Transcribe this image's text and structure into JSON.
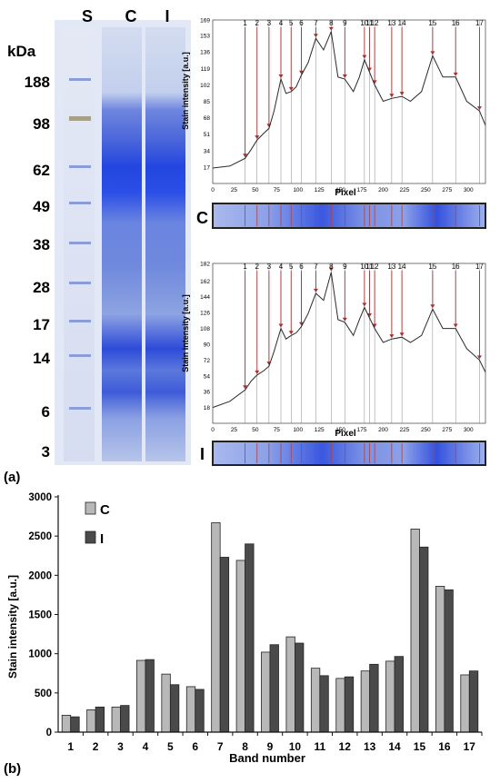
{
  "gel": {
    "unit_label": "kDa",
    "lane_labels": [
      "S",
      "C",
      "I"
    ],
    "markers": [
      "188",
      "98",
      "62",
      "49",
      "38",
      "28",
      "17",
      "14",
      "6",
      "3"
    ]
  },
  "panel_labels": {
    "a": "(a)",
    "b": "(b)"
  },
  "profiles": [
    {
      "strip_label": "C",
      "ylabel": "Stain intensity [a.u.]",
      "xlabel": "Pixel",
      "yticks": [
        "17",
        "34",
        "51",
        "68",
        "85",
        "102",
        "119",
        "136",
        "153",
        "169"
      ],
      "ymax": 169,
      "xticks": [
        "0",
        "25",
        "50",
        "75",
        "100",
        "125",
        "150",
        "175",
        "200",
        "225",
        "250",
        "275",
        "300"
      ],
      "xmax": 320,
      "band_labels": [
        "1",
        "2",
        "3",
        "4",
        "5",
        "6",
        "7",
        "8",
        "9",
        "10",
        "11",
        "12",
        "13",
        "14",
        "15",
        "16",
        "17"
      ],
      "band_x": [
        38,
        52,
        66,
        80,
        92,
        104,
        121,
        139,
        155,
        178,
        184,
        190,
        210,
        222,
        258,
        285,
        313
      ],
      "profile": [
        [
          0,
          16
        ],
        [
          20,
          18
        ],
        [
          38,
          26
        ],
        [
          45,
          35
        ],
        [
          52,
          45
        ],
        [
          60,
          52
        ],
        [
          66,
          57
        ],
        [
          72,
          75
        ],
        [
          80,
          108
        ],
        [
          86,
          93
        ],
        [
          92,
          95
        ],
        [
          98,
          100
        ],
        [
          104,
          112
        ],
        [
          112,
          125
        ],
        [
          121,
          150
        ],
        [
          130,
          138
        ],
        [
          139,
          157
        ],
        [
          147,
          110
        ],
        [
          155,
          108
        ],
        [
          165,
          95
        ],
        [
          172,
          110
        ],
        [
          178,
          128
        ],
        [
          184,
          115
        ],
        [
          190,
          102
        ],
        [
          200,
          85
        ],
        [
          210,
          88
        ],
        [
          222,
          90
        ],
        [
          232,
          85
        ],
        [
          245,
          95
        ],
        [
          258,
          132
        ],
        [
          270,
          110
        ],
        [
          285,
          110
        ],
        [
          298,
          85
        ],
        [
          313,
          75
        ],
        [
          320,
          60
        ]
      ]
    },
    {
      "strip_label": "I",
      "ylabel": "Stain intensity [a.u.]",
      "xlabel": "Pixel",
      "yticks": [
        "18",
        "36",
        "54",
        "72",
        "90",
        "108",
        "126",
        "144",
        "162",
        "182"
      ],
      "ymax": 182,
      "xticks": [
        "0",
        "25",
        "50",
        "75",
        "100",
        "125",
        "150",
        "175",
        "200",
        "225",
        "250",
        "275",
        "300"
      ],
      "xmax": 320,
      "band_labels": [
        "1",
        "2",
        "3",
        "4",
        "5",
        "6",
        "7",
        "8",
        "9",
        "10",
        "11",
        "12",
        "13",
        "14",
        "15",
        "16",
        "17"
      ],
      "band_x": [
        38,
        52,
        66,
        80,
        92,
        104,
        121,
        139,
        155,
        178,
        184,
        190,
        210,
        222,
        258,
        285,
        313
      ],
      "profile": [
        [
          0,
          18
        ],
        [
          20,
          25
        ],
        [
          38,
          38
        ],
        [
          45,
          48
        ],
        [
          52,
          55
        ],
        [
          60,
          60
        ],
        [
          66,
          65
        ],
        [
          72,
          82
        ],
        [
          80,
          108
        ],
        [
          86,
          96
        ],
        [
          92,
          100
        ],
        [
          98,
          103
        ],
        [
          104,
          110
        ],
        [
          112,
          125
        ],
        [
          121,
          148
        ],
        [
          130,
          140
        ],
        [
          139,
          172
        ],
        [
          147,
          118
        ],
        [
          155,
          115
        ],
        [
          165,
          100
        ],
        [
          172,
          118
        ],
        [
          178,
          132
        ],
        [
          184,
          120
        ],
        [
          190,
          108
        ],
        [
          200,
          92
        ],
        [
          210,
          96
        ],
        [
          222,
          98
        ],
        [
          232,
          92
        ],
        [
          245,
          100
        ],
        [
          258,
          130
        ],
        [
          270,
          108
        ],
        [
          285,
          108
        ],
        [
          298,
          85
        ],
        [
          313,
          72
        ],
        [
          320,
          58
        ]
      ]
    }
  ],
  "chart_data": {
    "type": "bar",
    "xlabel": "Band number",
    "ylabel": "Stain intensity [a.u.]",
    "ylim": [
      0,
      3000
    ],
    "yticks": [
      "0",
      "500",
      "1000",
      "1500",
      "2000",
      "2500",
      "3000"
    ],
    "categories": [
      "1",
      "2",
      "3",
      "4",
      "5",
      "6",
      "7",
      "8",
      "9",
      "10",
      "11",
      "12",
      "13",
      "14",
      "15",
      "16",
      "17"
    ],
    "legend_placement": "top-left",
    "series": [
      {
        "name": "C",
        "color": "#b8b8b8",
        "values": [
          215,
          285,
          320,
          915,
          740,
          580,
          2670,
          2190,
          1020,
          1215,
          815,
          685,
          780,
          905,
          2590,
          1860,
          730
        ]
      },
      {
        "name": "I",
        "color": "#4a4a4a",
        "values": [
          195,
          320,
          340,
          925,
          605,
          545,
          2230,
          2400,
          1115,
          1135,
          720,
          705,
          865,
          965,
          2360,
          1815,
          780
        ]
      }
    ]
  }
}
